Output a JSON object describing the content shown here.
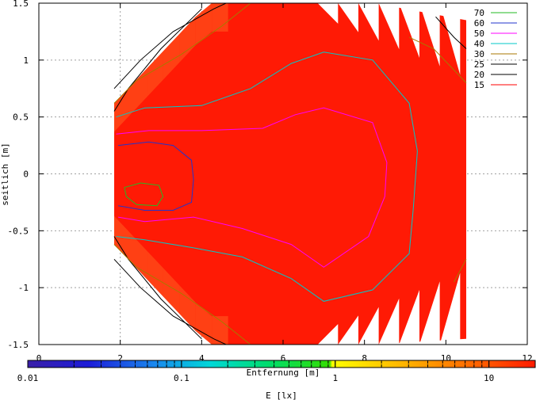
{
  "chart_data": {
    "type": "heatmap",
    "xlabel": "Entfernung [m]",
    "ylabel": "seitlich [m]",
    "colorbar_label": "E [lx]",
    "xlim": [
      0,
      12
    ],
    "ylim": [
      -1.5,
      1.5
    ],
    "x_ticks": [
      "0",
      "2",
      "4",
      "6",
      "8",
      "10",
      "12"
    ],
    "y_ticks": [
      "1.5",
      "1",
      "0.5",
      "0",
      "-0.5",
      "-1",
      "-1.5"
    ],
    "colorbar": {
      "scale": "log",
      "range": [
        0.01,
        20
      ],
      "ticks": [
        "0.01",
        "0.1",
        "1",
        "10"
      ]
    },
    "grid": true,
    "legend_position": "top-right",
    "contours": [
      {
        "level": "70",
        "color": "#22bb22"
      },
      {
        "level": "60",
        "color": "#2233cc"
      },
      {
        "level": "50",
        "color": "#ff00ff"
      },
      {
        "level": "40",
        "color": "#00c8c8"
      },
      {
        "level": "30",
        "color": "#aa7700"
      },
      {
        "level": "25",
        "color": "#000000"
      },
      {
        "level": "20",
        "color": "#000000"
      },
      {
        "level": "15",
        "color": "#ff0000"
      }
    ],
    "contour_paths": {
      "70": [
        [
          [
            2.1,
            -0.12
          ],
          [
            2.5,
            -0.08
          ],
          [
            2.95,
            -0.1
          ],
          [
            3.05,
            -0.2
          ],
          [
            2.9,
            -0.28
          ],
          [
            2.4,
            -0.27
          ],
          [
            2.15,
            -0.2
          ],
          [
            2.1,
            -0.12
          ]
        ]
      ],
      "60": [
        [
          [
            1.95,
            0.25
          ],
          [
            2.7,
            0.28
          ],
          [
            3.3,
            0.25
          ],
          [
            3.75,
            0.12
          ],
          [
            3.8,
            -0.05
          ],
          [
            3.75,
            -0.25
          ],
          [
            3.3,
            -0.32
          ],
          [
            2.6,
            -0.32
          ],
          [
            1.95,
            -0.28
          ]
        ]
      ],
      "50": [
        [
          [
            1.9,
            0.35
          ],
          [
            2.7,
            0.38
          ],
          [
            4.0,
            0.38
          ],
          [
            5.5,
            0.4
          ],
          [
            6.3,
            0.52
          ],
          [
            7.0,
            0.58
          ],
          [
            8.2,
            0.45
          ],
          [
            8.55,
            0.1
          ],
          [
            8.5,
            -0.2
          ],
          [
            8.1,
            -0.55
          ],
          [
            7.0,
            -0.82
          ],
          [
            6.2,
            -0.62
          ],
          [
            5.0,
            -0.48
          ],
          [
            3.8,
            -0.38
          ],
          [
            2.6,
            -0.42
          ],
          [
            1.95,
            -0.38
          ]
        ]
      ],
      "40": [
        [
          [
            1.9,
            0.5
          ],
          [
            2.6,
            0.58
          ],
          [
            4.0,
            0.6
          ],
          [
            5.2,
            0.75
          ],
          [
            6.2,
            0.97
          ],
          [
            7.0,
            1.07
          ],
          [
            8.2,
            1.0
          ],
          [
            9.1,
            0.62
          ],
          [
            9.3,
            0.2
          ],
          [
            9.2,
            -0.3
          ],
          [
            9.1,
            -0.7
          ],
          [
            8.2,
            -1.02
          ],
          [
            7.0,
            -1.12
          ],
          [
            6.2,
            -0.92
          ],
          [
            5.0,
            -0.73
          ],
          [
            3.8,
            -0.65
          ],
          [
            2.6,
            -0.58
          ],
          [
            1.9,
            -0.55
          ]
        ]
      ],
      "30": [
        [
          [
            1.85,
            0.62
          ],
          [
            2.4,
            0.82
          ],
          [
            3.5,
            1.05
          ],
          [
            4.5,
            1.3
          ],
          [
            5.2,
            1.5
          ]
        ],
        [
          [
            1.85,
            -0.62
          ],
          [
            2.4,
            -0.82
          ],
          [
            3.5,
            -1.05
          ],
          [
            4.5,
            -1.3
          ],
          [
            5.2,
            -1.5
          ]
        ],
        [
          [
            9.1,
            1.2
          ],
          [
            9.7,
            1.1
          ],
          [
            10.5,
            0.8
          ]
        ],
        [
          [
            10.2,
            -0.95
          ],
          [
            10.5,
            -0.75
          ]
        ]
      ],
      "25": [
        [
          [
            1.85,
            0.75
          ],
          [
            2.5,
            1.0
          ],
          [
            3.3,
            1.25
          ],
          [
            4.3,
            1.45
          ],
          [
            4.6,
            1.5
          ]
        ],
        [
          [
            1.85,
            -0.75
          ],
          [
            2.5,
            -1.0
          ],
          [
            3.3,
            -1.25
          ],
          [
            4.3,
            -1.45
          ],
          [
            4.6,
            -1.5
          ]
        ]
      ],
      "20": [
        [
          [
            1.85,
            0.55
          ],
          [
            2.2,
            0.75
          ],
          [
            3.0,
            1.1
          ],
          [
            4.0,
            1.45
          ]
        ],
        [
          [
            1.85,
            -0.55
          ],
          [
            2.2,
            -0.75
          ],
          [
            3.0,
            -1.1
          ],
          [
            4.0,
            -1.45
          ]
        ],
        [
          [
            9.75,
            1.38
          ],
          [
            10.2,
            1.2
          ],
          [
            10.5,
            1.1
          ]
        ]
      ],
      "15": []
    }
  }
}
